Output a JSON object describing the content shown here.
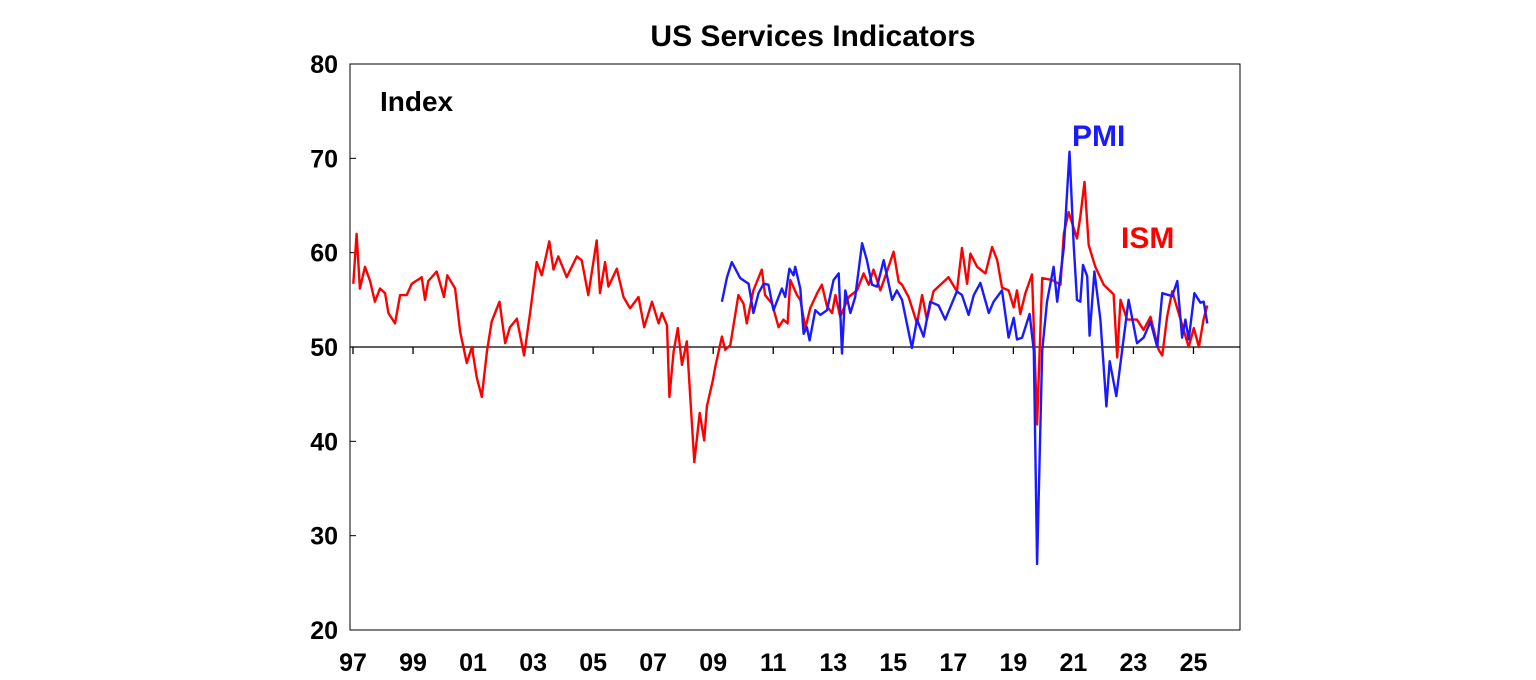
{
  "chart_data": {
    "type": "line",
    "title": "US Services Indicators",
    "ylabel": "Index",
    "xlim": [
      1996.9,
      2026.55
    ],
    "ylim": [
      20,
      80
    ],
    "yticks": [
      20,
      30,
      40,
      50,
      60,
      70,
      80
    ],
    "xticks": [
      {
        "x": 1997,
        "label": "97"
      },
      {
        "x": 1999,
        "label": "99"
      },
      {
        "x": 2001,
        "label": "01"
      },
      {
        "x": 2003,
        "label": "03"
      },
      {
        "x": 2005,
        "label": "05"
      },
      {
        "x": 2007,
        "label": "07"
      },
      {
        "x": 2009,
        "label": "09"
      },
      {
        "x": 2011,
        "label": "11"
      },
      {
        "x": 2013,
        "label": "13"
      },
      {
        "x": 2015,
        "label": "15"
      },
      {
        "x": 2017,
        "label": "17"
      },
      {
        "x": 2019,
        "label": "19"
      },
      {
        "x": 2021,
        "label": "21"
      },
      {
        "x": 2023,
        "label": "23"
      },
      {
        "x": 2025,
        "label": "25"
      }
    ],
    "reference_line": 50,
    "grid": false,
    "series": [
      {
        "name": "ISM",
        "color": "#ff0000",
        "x": [
          1997.01,
          1997.12,
          1997.23,
          1997.4,
          1997.57,
          1997.73,
          1997.9,
          1998.07,
          1998.18,
          1998.4,
          1998.57,
          1998.79,
          1998.96,
          1999.29,
          1999.4,
          1999.51,
          1999.79,
          2000.03,
          2000.14,
          2000.4,
          2000.57,
          2000.79,
          2000.96,
          2001.12,
          2001.29,
          2001.46,
          2001.62,
          2001.88,
          2002.07,
          2002.23,
          2002.46,
          2002.7,
          2002.9,
          2003.12,
          2003.29,
          2003.54,
          2003.68,
          2003.84,
          2004.12,
          2004.46,
          2004.62,
          2004.84,
          2005.12,
          2005.23,
          2005.4,
          2005.51,
          2005.79,
          2006.01,
          2006.23,
          2006.51,
          2006.7,
          2006.96,
          2007.18,
          2007.29,
          2007.46,
          2007.54,
          2007.68,
          2007.82,
          2007.96,
          2008.12,
          2008.37,
          2008.55,
          2008.7,
          2008.79,
          2008.99,
          2009.07,
          2009.29,
          2009.4,
          2009.57,
          2009.84,
          2010.01,
          2010.12,
          2010.34,
          2010.62,
          2010.73,
          2010.96,
          2011.18,
          2011.34,
          2011.48,
          2011.57,
          2011.79,
          2011.9,
          2012.07,
          2012.23,
          2012.46,
          2012.62,
          2012.79,
          2012.96,
          2013.07,
          2013.23,
          2013.51,
          2013.79,
          2014.01,
          2014.18,
          2014.34,
          2014.57,
          2014.79,
          2015.01,
          2015.18,
          2015.29,
          2015.51,
          2015.79,
          2015.96,
          2016.12,
          2016.34,
          2016.57,
          2016.84,
          2017.12,
          2017.29,
          2017.46,
          2017.57,
          2017.79,
          2018.07,
          2018.29,
          2018.46,
          2018.62,
          2018.84,
          2019.01,
          2019.12,
          2019.23,
          2019.4,
          2019.62,
          2019.79,
          2019.96,
          2020.29,
          2020.57,
          2020.68,
          2020.84,
          2021.12,
          2021.23,
          2021.37,
          2021.51,
          2021.73,
          2022.01,
          2022.34,
          2022.46,
          2022.57,
          2022.79,
          2023.12,
          2023.34,
          2023.57,
          2023.84,
          2023.96,
          2024.12,
          2024.29,
          2024.57,
          2024.84,
          2025.01,
          2025.18,
          2025.34,
          2025.46
        ],
        "y": [
          56.7,
          62.0,
          56.2,
          58.5,
          57.0,
          54.8,
          56.2,
          55.7,
          53.6,
          52.5,
          55.5,
          55.5,
          56.7,
          57.4,
          55.0,
          57.0,
          58.0,
          55.3,
          57.6,
          56.2,
          51.6,
          48.3,
          50.0,
          46.8,
          44.7,
          49.5,
          52.7,
          54.8,
          50.4,
          52.1,
          53.0,
          49.1,
          53.6,
          59.0,
          57.6,
          61.2,
          58.2,
          59.6,
          57.4,
          59.6,
          59.2,
          55.5,
          61.3,
          55.7,
          59.0,
          56.4,
          58.3,
          55.3,
          54.1,
          55.3,
          52.1,
          54.8,
          52.5,
          53.6,
          52.3,
          44.7,
          49.5,
          52.0,
          48.1,
          50.6,
          37.8,
          43.0,
          40.1,
          43.7,
          46.5,
          47.9,
          51.1,
          49.7,
          50.2,
          55.5,
          54.6,
          52.5,
          56.0,
          58.2,
          55.5,
          54.6,
          52.1,
          52.9,
          52.5,
          57.1,
          55.5,
          55.0,
          52.0,
          54.1,
          55.7,
          56.6,
          54.3,
          53.6,
          55.5,
          53.2,
          55.3,
          56.0,
          57.8,
          56.6,
          58.2,
          56.0,
          58.0,
          60.1,
          56.9,
          56.6,
          55.3,
          52.5,
          55.5,
          52.9,
          55.9,
          56.6,
          57.4,
          55.9,
          60.5,
          56.7,
          59.9,
          58.5,
          57.8,
          60.6,
          59.2,
          56.3,
          56.0,
          54.2,
          56.0,
          53.5,
          55.7,
          57.7,
          41.8,
          57.3,
          57.1,
          56.6,
          62.0,
          64.3,
          61.5,
          63.8,
          67.5,
          60.8,
          58.5,
          56.6,
          55.6,
          48.9,
          55.0,
          52.9,
          52.9,
          51.8,
          53.2,
          49.7,
          49.1,
          53.2,
          55.9,
          52.9,
          50.0,
          52.0,
          50.0,
          53.0,
          54.4
        ]
      },
      {
        "name": "PMI",
        "color": "#1a1aff",
        "x": [
          2009.29,
          2009.46,
          2009.62,
          2009.9,
          2010.18,
          2010.34,
          2010.51,
          2010.68,
          2010.84,
          2011.01,
          2011.29,
          2011.4,
          2011.54,
          2011.68,
          2011.73,
          2011.9,
          2012.01,
          2012.12,
          2012.21,
          2012.4,
          2012.57,
          2012.79,
          2013.01,
          2013.18,
          2013.29,
          2013.4,
          2013.57,
          2013.73,
          2013.96,
          2014.12,
          2014.29,
          2014.46,
          2014.68,
          2014.96,
          2015.12,
          2015.29,
          2015.62,
          2015.79,
          2016.01,
          2016.23,
          2016.51,
          2016.73,
          2017.12,
          2017.29,
          2017.51,
          2017.68,
          2017.9,
          2018.18,
          2018.34,
          2018.62,
          2018.84,
          2019.01,
          2019.12,
          2019.29,
          2019.54,
          2019.68,
          2019.79,
          2019.96,
          2020.12,
          2020.34,
          2020.46,
          2020.68,
          2020.87,
          2021.01,
          2021.12,
          2021.23,
          2021.32,
          2021.46,
          2021.54,
          2021.7,
          2021.9,
          2022.1,
          2022.21,
          2022.43,
          2022.84,
          2023.12,
          2023.34,
          2023.57,
          2023.79,
          2023.96,
          2024.29,
          2024.46,
          2024.62,
          2024.73,
          2024.84,
          2025.03,
          2025.23,
          2025.34,
          2025.46
        ],
        "y": [
          54.8,
          57.4,
          59.0,
          57.3,
          56.7,
          53.6,
          55.7,
          56.7,
          56.6,
          53.9,
          56.2,
          55.3,
          58.3,
          57.6,
          58.5,
          56.2,
          51.4,
          52.1,
          50.7,
          53.9,
          53.4,
          53.9,
          57.1,
          57.8,
          49.3,
          56.0,
          53.6,
          55.3,
          61.0,
          59.2,
          56.6,
          56.4,
          59.2,
          55.0,
          56.0,
          55.0,
          49.9,
          52.9,
          51.1,
          54.8,
          54.4,
          52.9,
          55.9,
          55.5,
          53.4,
          55.5,
          56.8,
          53.6,
          54.8,
          56.0,
          51.0,
          53.1,
          50.8,
          51.0,
          53.5,
          49.6,
          27.0,
          49.6,
          54.8,
          58.5,
          54.8,
          60.5,
          70.7,
          60.8,
          55.0,
          54.8,
          58.7,
          57.5,
          51.2,
          58.0,
          52.9,
          43.7,
          48.5,
          44.8,
          55.0,
          50.4,
          51.0,
          52.7,
          50.0,
          55.7,
          55.4,
          57.0,
          51.0,
          52.9,
          50.8,
          55.7,
          54.7,
          54.8,
          52.5
        ]
      }
    ]
  }
}
